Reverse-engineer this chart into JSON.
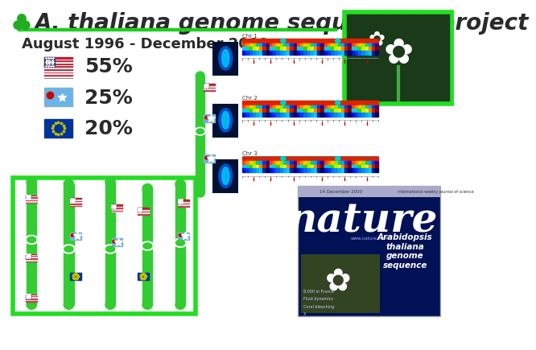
{
  "title": "A. thaliana genome sequencing project",
  "subtitle": "August 1996 - December 2000",
  "title_fontsize": 20,
  "subtitle_fontsize": 13,
  "background_color": "#ffffff",
  "title_color": "#2a2a2a",
  "subtitle_color": "#2a2a2a",
  "green_line_color": "#22cc22",
  "green_box_color": "#22dd22",
  "trefoil_color": "#22aa22",
  "flag_us_label": "55%",
  "flag_japan_label": "25%",
  "flag_eu_label": "20%",
  "percent_fontsize": 18,
  "chromosome_color": "#33cc33",
  "nature_bg": "#001a66",
  "nature_text": "#ffffff"
}
